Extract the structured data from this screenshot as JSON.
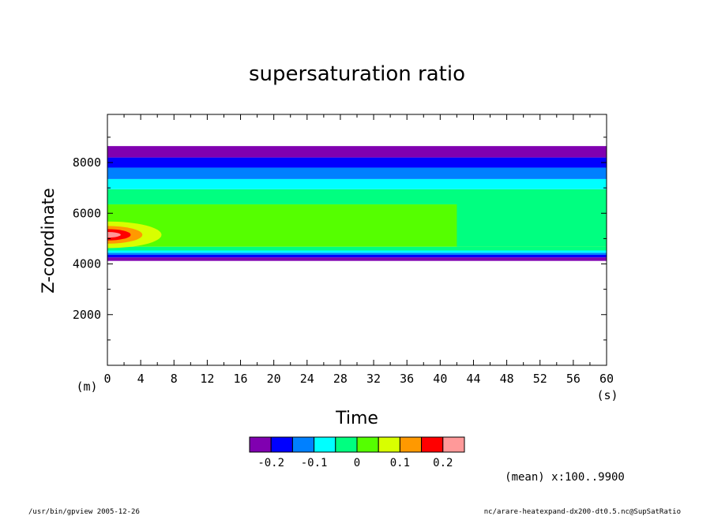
{
  "chart_data": {
    "type": "heatmap",
    "title": "supersaturation ratio",
    "xlabel": "Time",
    "ylabel": "Z-coordinate",
    "x_unit": "(s)",
    "y_unit": "(m)",
    "xlim": [
      0,
      60
    ],
    "ylim": [
      0,
      9900
    ],
    "x_ticks": [
      0,
      4,
      8,
      12,
      16,
      20,
      24,
      28,
      32,
      36,
      40,
      44,
      48,
      52,
      56,
      60
    ],
    "y_ticks": [
      2000,
      4000,
      6000,
      8000
    ],
    "annotation": "(mean) x:100..9900",
    "colorbar": {
      "colors": [
        "#8000b0",
        "#0000ff",
        "#0080ff",
        "#00ffff",
        "#00ff80",
        "#55ff00",
        "#d8ff00",
        "#ff9900",
        "#ff0000",
        "#ff9999"
      ],
      "tick_labels": [
        "-0.2",
        "-0.1",
        "0",
        "0.1",
        "0.2"
      ]
    },
    "bands": [
      {
        "z": [
          4120,
          4260
        ],
        "color": "#8000b0"
      },
      {
        "z": [
          4260,
          4360
        ],
        "color": "#0000ff"
      },
      {
        "z": [
          4360,
          4440
        ],
        "color": "#0080ff"
      },
      {
        "z": [
          4440,
          4530
        ],
        "color": "#00ffff"
      },
      {
        "z": [
          4530,
          4680
        ],
        "color": "#00ff80"
      },
      {
        "z": [
          4680,
          6350
        ],
        "color": "#55ff00"
      },
      {
        "z": [
          6350,
          6950
        ],
        "color": "#00ff80"
      },
      {
        "z": [
          6950,
          7350
        ],
        "color": "#00ffff"
      },
      {
        "z": [
          7350,
          7800
        ],
        "color": "#0080ff"
      },
      {
        "z": [
          7800,
          8200
        ],
        "color": "#0000ff"
      },
      {
        "z": [
          8200,
          8650
        ],
        "color": "#8000b0"
      }
    ],
    "features": [
      {
        "label": "0 to 0.1 region",
        "center": [
          0,
          5150
        ],
        "x_extent": 6.5,
        "z_extent": 1050,
        "color": "#d8ff00"
      },
      {
        "label": "0.1 region",
        "center": [
          0,
          5150
        ],
        "x_extent": 4.2,
        "z_extent": 700,
        "color": "#ff9900"
      },
      {
        "label": "0.15 region",
        "center": [
          0,
          5150
        ],
        "x_extent": 2.8,
        "z_extent": 450,
        "color": "#ff0000"
      },
      {
        "label": "0.2 region",
        "center": [
          0,
          5150
        ],
        "x_extent": 1.6,
        "z_extent": 220,
        "color": "#ff9999"
      }
    ],
    "green_region": {
      "x": [
        42,
        60
      ],
      "z": [
        4680,
        6600
      ],
      "color": "#00ff80"
    }
  },
  "footer": {
    "left": "/usr/bin/gpview  2005-12-26",
    "right": "nc/arare-heatexpand-dx200-dt0.5.nc@SupSatRatio"
  }
}
